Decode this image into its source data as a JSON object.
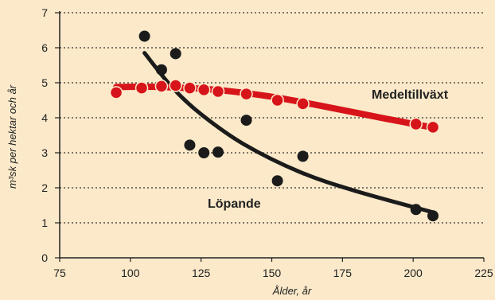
{
  "chart_data": {
    "type": "scatter",
    "xlabel": "Ålder, år",
    "ylabel": "m³sk per hektar och år",
    "xlim": [
      75,
      225
    ],
    "ylim": [
      0,
      7
    ],
    "xticks": [
      75,
      100,
      125,
      150,
      175,
      200,
      225
    ],
    "yticks": [
      0,
      1,
      2,
      3,
      4,
      5,
      6,
      7
    ],
    "grid": "horizontal-dotted",
    "series": [
      {
        "name": "Medeltillväxt",
        "color": "#d7141a",
        "points": [
          {
            "x": 95,
            "y": 4.72
          },
          {
            "x": 104,
            "y": 4.85
          },
          {
            "x": 111,
            "y": 4.9
          },
          {
            "x": 116,
            "y": 4.92
          },
          {
            "x": 121,
            "y": 4.85
          },
          {
            "x": 126,
            "y": 4.8
          },
          {
            "x": 131,
            "y": 4.75
          },
          {
            "x": 141,
            "y": 4.68
          },
          {
            "x": 152,
            "y": 4.5
          },
          {
            "x": 161,
            "y": 4.4
          },
          {
            "x": 201,
            "y": 3.82
          },
          {
            "x": 207,
            "y": 3.73
          }
        ],
        "trend": [
          {
            "x": 95,
            "y": 4.88
          },
          {
            "x": 110,
            "y": 4.88
          },
          {
            "x": 130,
            "y": 4.8
          },
          {
            "x": 150,
            "y": 4.6
          },
          {
            "x": 170,
            "y": 4.3
          },
          {
            "x": 190,
            "y": 3.98
          },
          {
            "x": 207,
            "y": 3.72
          }
        ]
      },
      {
        "name": "Löpande",
        "color": "#1b1b1b",
        "points": [
          {
            "x": 105,
            "y": 6.33
          },
          {
            "x": 111,
            "y": 5.37
          },
          {
            "x": 116,
            "y": 5.83
          },
          {
            "x": 121,
            "y": 3.22
          },
          {
            "x": 126,
            "y": 3.0
          },
          {
            "x": 131,
            "y": 3.02
          },
          {
            "x": 141,
            "y": 3.93
          },
          {
            "x": 152,
            "y": 2.2
          },
          {
            "x": 161,
            "y": 2.9
          },
          {
            "x": 201,
            "y": 1.38
          },
          {
            "x": 207,
            "y": 1.2
          }
        ],
        "trend": [
          {
            "x": 105,
            "y": 5.85
          },
          {
            "x": 115,
            "y": 4.85
          },
          {
            "x": 125,
            "y": 4.1
          },
          {
            "x": 140,
            "y": 3.25
          },
          {
            "x": 160,
            "y": 2.45
          },
          {
            "x": 180,
            "y": 1.9
          },
          {
            "x": 207,
            "y": 1.3
          }
        ]
      }
    ]
  }
}
